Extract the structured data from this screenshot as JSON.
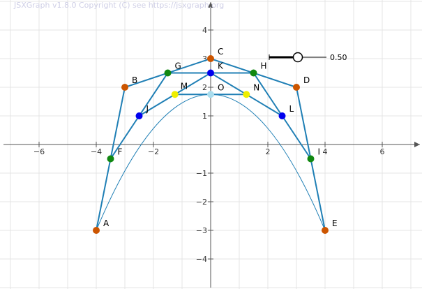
{
  "watermark": "JSXGraph v1.8.0 Copyright (C) see https://jsxgraph.org",
  "axes": {
    "x_ticks": [
      -6,
      -4,
      -2,
      2,
      4,
      6
    ],
    "y_ticks": [
      4,
      3,
      2,
      1,
      -1,
      -2,
      -3,
      -4
    ],
    "x_range": [
      -7.4,
      7.3
    ],
    "y_range": [
      -5.0,
      5.0
    ],
    "grid": true
  },
  "slider": {
    "value": 0.5,
    "value_text": "0.50",
    "min": 0,
    "max": 1
  },
  "points": [
    {
      "label": "A",
      "x": -4,
      "y": -3,
      "color": "#cc5500"
    },
    {
      "label": "B",
      "x": -3.0,
      "y": 2,
      "color": "#cc5500"
    },
    {
      "label": "C",
      "x": 0,
      "y": 3,
      "color": "#cc5500"
    },
    {
      "label": "D",
      "x": 3.0,
      "y": 2,
      "color": "#cc5500"
    },
    {
      "label": "E",
      "x": 4,
      "y": -3,
      "color": "#cc5500"
    },
    {
      "label": "F",
      "x": -3.5,
      "y": -0.5,
      "color": "#118811"
    },
    {
      "label": "G",
      "x": -1.5,
      "y": 2.5,
      "color": "#118811"
    },
    {
      "label": "H",
      "x": 1.5,
      "y": 2.5,
      "color": "#118811"
    },
    {
      "label": "I",
      "x": 3.5,
      "y": -0.5,
      "color": "#118811"
    },
    {
      "label": "J",
      "x": -2.5,
      "y": 1.0,
      "color": "#0000ee"
    },
    {
      "label": "K",
      "x": 0,
      "y": 2.5,
      "color": "#0000ee"
    },
    {
      "label": "L",
      "x": 2.5,
      "y": 1.0,
      "color": "#0000ee"
    },
    {
      "label": "M",
      "x": -1.25,
      "y": 1.75,
      "color": "#eeee00"
    },
    {
      "label": "N",
      "x": 1.25,
      "y": 1.75,
      "color": "#eeee00"
    },
    {
      "label": "O",
      "x": 0,
      "y": 1.75,
      "color": "#aaddee"
    }
  ],
  "polylines": [
    [
      "A",
      "B",
      "C",
      "D",
      "E"
    ],
    [
      "F",
      "G",
      "H",
      "I"
    ],
    [
      "J",
      "K",
      "L"
    ],
    [
      "M",
      "N"
    ]
  ],
  "curve": {
    "from": "A",
    "to": "E",
    "apex": "O"
  }
}
